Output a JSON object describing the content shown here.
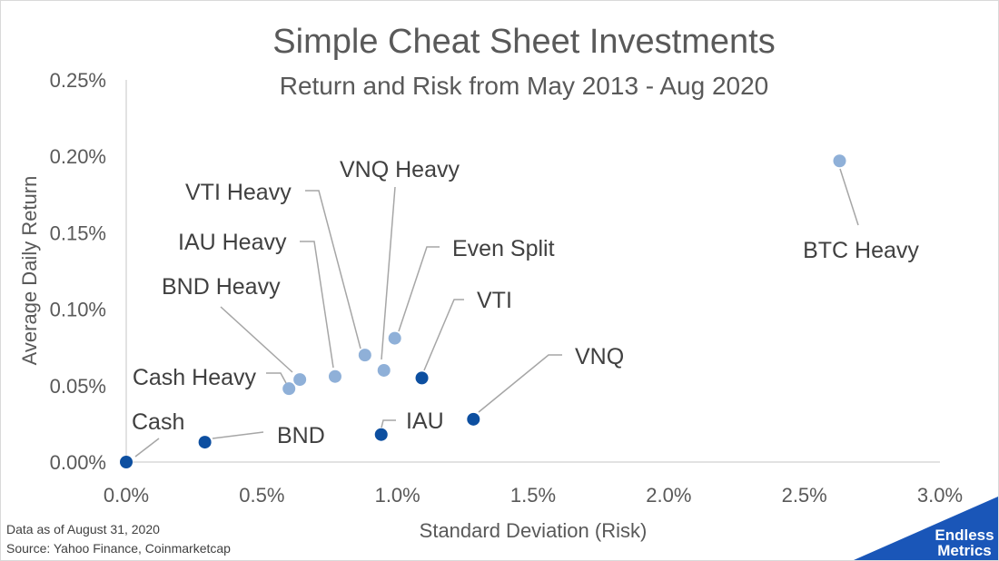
{
  "chart_data": {
    "type": "scatter",
    "title": "Simple Cheat Sheet Investments",
    "subtitle": "Return and Risk from May 2013 - Aug 2020",
    "xlabel": "Standard Deviation (Risk)",
    "ylabel": "Average Daily Return",
    "xlim": [
      0,
      3.0
    ],
    "ylim": [
      0,
      0.25
    ],
    "x_unit": "%",
    "y_unit": "%",
    "x_ticks": [
      "0.0%",
      "0.5%",
      "1.0%",
      "1.5%",
      "2.0%",
      "2.5%",
      "3.0%"
    ],
    "y_ticks": [
      "0.00%",
      "0.05%",
      "0.10%",
      "0.15%",
      "0.20%",
      "0.25%"
    ],
    "grid": false,
    "colors": {
      "single": "#0d4fa0",
      "mix": "#8fb0d8"
    },
    "points": [
      {
        "label": "Cash",
        "x": 0.0,
        "y": 0.0,
        "group": "single"
      },
      {
        "label": "BND",
        "x": 0.29,
        "y": 0.013,
        "group": "single"
      },
      {
        "label": "IAU",
        "x": 0.94,
        "y": 0.018,
        "group": "single"
      },
      {
        "label": "VNQ",
        "x": 1.28,
        "y": 0.028,
        "group": "single"
      },
      {
        "label": "VTI",
        "x": 1.09,
        "y": 0.055,
        "group": "single"
      },
      {
        "label": "Cash Heavy",
        "x": 0.6,
        "y": 0.048,
        "group": "mix"
      },
      {
        "label": "BND Heavy",
        "x": 0.64,
        "y": 0.054,
        "group": "mix"
      },
      {
        "label": "IAU Heavy",
        "x": 0.77,
        "y": 0.056,
        "group": "mix"
      },
      {
        "label": "VTI Heavy",
        "x": 0.88,
        "y": 0.07,
        "group": "mix"
      },
      {
        "label": "VNQ Heavy",
        "x": 0.95,
        "y": 0.06,
        "group": "mix"
      },
      {
        "label": "Even Split",
        "x": 0.99,
        "y": 0.081,
        "group": "mix"
      },
      {
        "label": "BTC Heavy",
        "x": 2.63,
        "y": 0.197,
        "group": "mix"
      }
    ]
  },
  "footer": {
    "date_note": "Data as of August 31, 2020",
    "source_note": "Source: Yahoo Finance, Coinmarketcap"
  },
  "brand": {
    "line1": "Endless",
    "line2": "Metrics",
    "color": "#1a56b8"
  }
}
